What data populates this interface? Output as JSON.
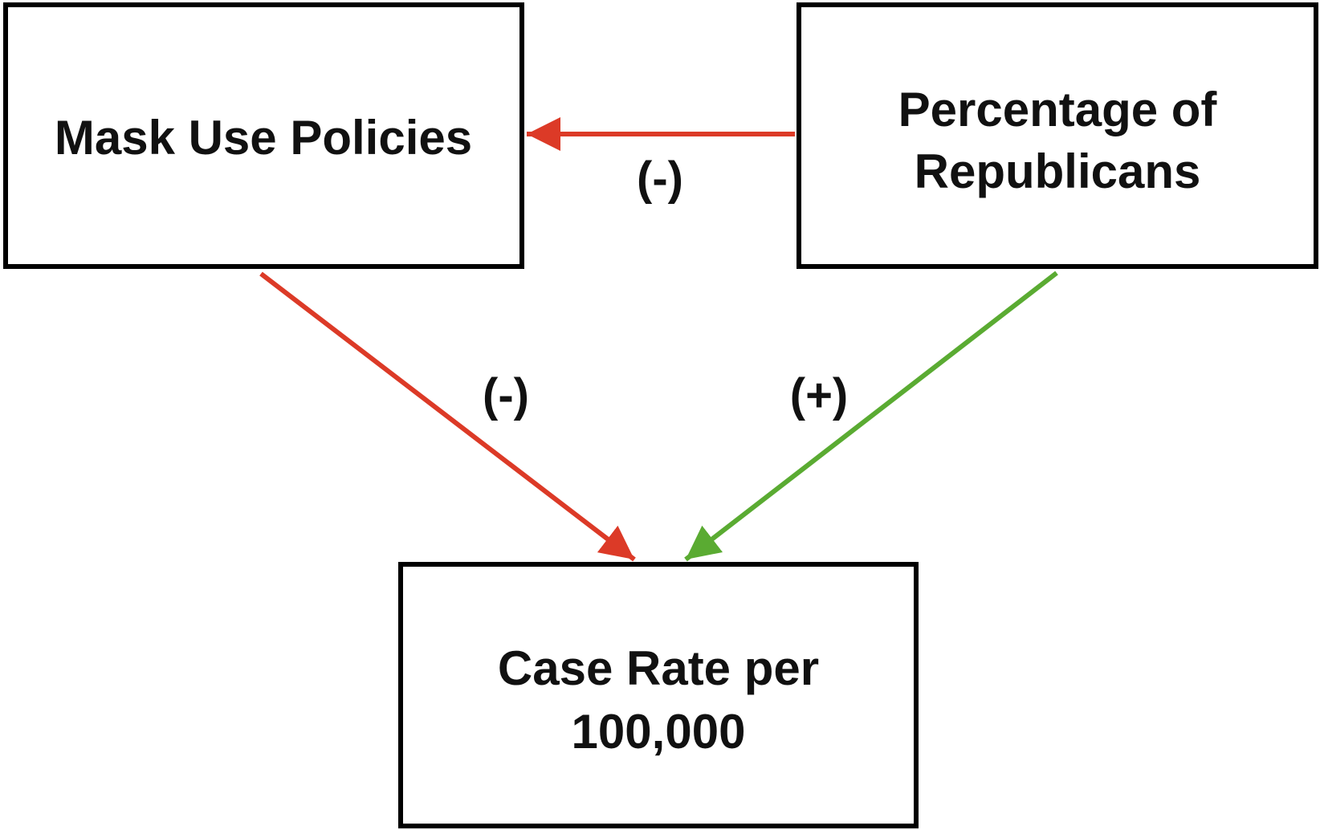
{
  "nodes": {
    "mask": {
      "label": "Mask Use Policies"
    },
    "republicans": {
      "line1": "Percentage of",
      "line2": "Republicans"
    },
    "case_rate": {
      "line1": "Case Rate per",
      "line2": "100,000"
    }
  },
  "edges": {
    "republicans_to_mask": {
      "sign": "(-)",
      "color": "#dc3a27"
    },
    "mask_to_case_rate": {
      "sign": "(-)",
      "color": "#dc3a27"
    },
    "republicans_to_case_rate": {
      "sign": "(+)",
      "color": "#5aab32"
    }
  }
}
